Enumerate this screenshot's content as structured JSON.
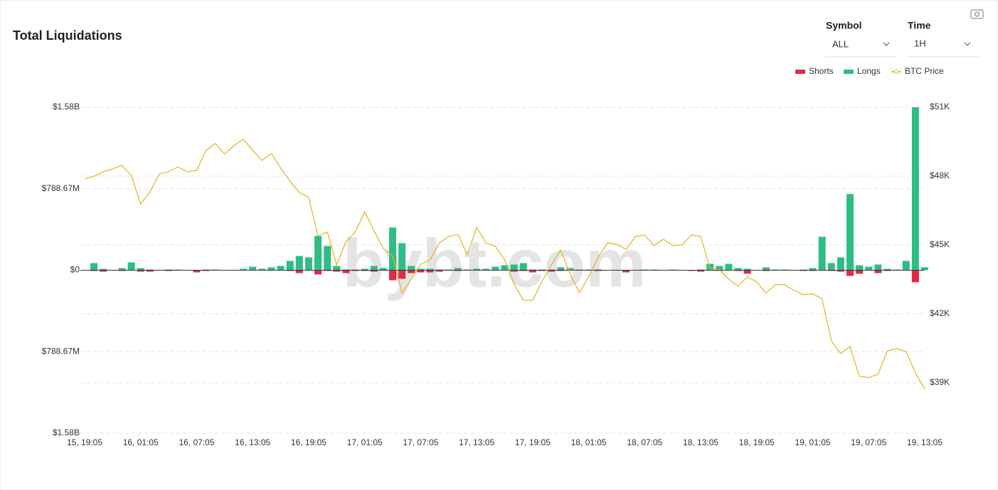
{
  "chart_data": {
    "type": "bar",
    "title": "Total Liquidations",
    "watermark": "bybt.com",
    "controls": [
      {
        "label": "Symbol",
        "value": "ALL"
      },
      {
        "label": "Time",
        "value": "1H"
      }
    ],
    "categories": [
      "15, 19:05",
      null,
      null,
      null,
      null,
      null,
      "16, 01:05",
      null,
      null,
      null,
      null,
      null,
      "16, 07:05",
      null,
      null,
      null,
      null,
      null,
      "16, 13:05",
      null,
      null,
      null,
      null,
      null,
      "16, 19:05",
      null,
      null,
      null,
      null,
      null,
      "17, 01:05",
      null,
      null,
      null,
      null,
      null,
      "17, 07:05",
      null,
      null,
      null,
      null,
      null,
      "17, 13:05",
      null,
      null,
      null,
      null,
      null,
      "17, 19:05",
      null,
      null,
      null,
      null,
      null,
      "18, 01:05",
      null,
      null,
      null,
      null,
      null,
      "18, 07:05",
      null,
      null,
      null,
      null,
      null,
      "18, 13:05",
      null,
      null,
      null,
      null,
      null,
      "18, 19:05",
      null,
      null,
      null,
      null,
      null,
      "19, 01:05",
      null,
      null,
      null,
      null,
      null,
      "19, 07:05",
      null,
      null,
      null,
      null,
      null,
      "19, 13:05"
    ],
    "series": [
      {
        "name": "Shorts",
        "color": "#e0294a",
        "values": [
          0,
          -7000000,
          -14000000,
          0,
          -7000000,
          0,
          -14000000,
          -14000000,
          0,
          -7000000,
          0,
          0,
          -21000000,
          -7000000,
          0,
          0,
          0,
          0,
          0,
          0,
          0,
          0,
          -7000000,
          -28000000,
          0,
          -41000000,
          -7000000,
          -14000000,
          -28000000,
          -7000000,
          -7000000,
          -14000000,
          0,
          -97000000,
          -83000000,
          -28000000,
          -21000000,
          -21000000,
          -14000000,
          0,
          -7000000,
          0,
          0,
          0,
          0,
          0,
          -14000000,
          -7000000,
          -21000000,
          -7000000,
          -14000000,
          -7000000,
          0,
          0,
          0,
          -7000000,
          0,
          0,
          -21000000,
          0,
          0,
          0,
          0,
          0,
          0,
          -7000000,
          -14000000,
          0,
          -7000000,
          0,
          -7000000,
          -34000000,
          0,
          -7000000,
          0,
          0,
          0,
          -7000000,
          -7000000,
          0,
          -7000000,
          -14000000,
          -55000000,
          -34000000,
          0,
          -28000000,
          -7000000,
          0,
          0,
          -117000000,
          0
        ]
      },
      {
        "name": "Longs",
        "color": "#2ebd85",
        "values": [
          0,
          69000000,
          14000000,
          0,
          21000000,
          76000000,
          21000000,
          7000000,
          0,
          7000000,
          7000000,
          0,
          0,
          7000000,
          7000000,
          0,
          0,
          14000000,
          34000000,
          14000000,
          28000000,
          41000000,
          90000000,
          138000000,
          124000000,
          331000000,
          234000000,
          41000000,
          7000000,
          7000000,
          14000000,
          41000000,
          21000000,
          413000000,
          262000000,
          41000000,
          14000000,
          14000000,
          7000000,
          7000000,
          21000000,
          7000000,
          14000000,
          14000000,
          34000000,
          48000000,
          55000000,
          69000000,
          7000000,
          7000000,
          7000000,
          28000000,
          21000000,
          7000000,
          7000000,
          7000000,
          0,
          0,
          0,
          0,
          7000000,
          7000000,
          0,
          7000000,
          0,
          0,
          7000000,
          62000000,
          41000000,
          62000000,
          21000000,
          14000000,
          0,
          28000000,
          7000000,
          7000000,
          0,
          7000000,
          21000000,
          324000000,
          69000000,
          124000000,
          737000000,
          48000000,
          34000000,
          55000000,
          14000000,
          7000000,
          90000000,
          1577000000,
          28000000
        ]
      },
      {
        "name": "BTC Price",
        "color": "#e8b21c",
        "axis": "y2",
        "type": "line",
        "values": [
          47880,
          47990,
          48190,
          48310,
          48470,
          48030,
          46790,
          47320,
          48090,
          48190,
          48400,
          48190,
          48250,
          49120,
          49420,
          48960,
          49330,
          49610,
          49120,
          48680,
          48990,
          48340,
          47780,
          47290,
          47070,
          45400,
          45560,
          44130,
          45150,
          45560,
          46450,
          45620,
          44840,
          44530,
          42900,
          43510,
          44160,
          44350,
          45090,
          45370,
          45460,
          44570,
          45770,
          45090,
          44940,
          44350,
          43300,
          42590,
          42590,
          43420,
          44130,
          44780,
          43730,
          42930,
          43610,
          44440,
          45090,
          45030,
          44810,
          45370,
          45430,
          44970,
          45250,
          44970,
          45000,
          45430,
          45370,
          43980,
          43920,
          43510,
          43210,
          43610,
          43390,
          42900,
          43270,
          43270,
          43020,
          42830,
          42870,
          42650,
          40820,
          40270,
          40580,
          39280,
          39220,
          39370,
          40390,
          40480,
          40360,
          39430,
          38720
        ]
      }
    ],
    "ylim": [
      -1577340000,
      1577340000
    ],
    "yticks": [
      {
        "value": -1577340000,
        "label": "$1.58B"
      },
      {
        "value": -788670000,
        "label": "$788.67M"
      },
      {
        "value": 0,
        "label": "$0"
      },
      {
        "value": 788670000,
        "label": "$788.67M"
      },
      {
        "value": 1577340000,
        "label": "$1.58B"
      }
    ],
    "y2lim": [
      36800,
      51000
    ],
    "y2ticks": [
      {
        "value": 39000,
        "label": "$39K"
      },
      {
        "value": 42000,
        "label": "$42K"
      },
      {
        "value": 45000,
        "label": "$45K"
      },
      {
        "value": 48000,
        "label": "$48K"
      },
      {
        "value": 51000,
        "label": "$51K"
      }
    ],
    "grid": true
  }
}
